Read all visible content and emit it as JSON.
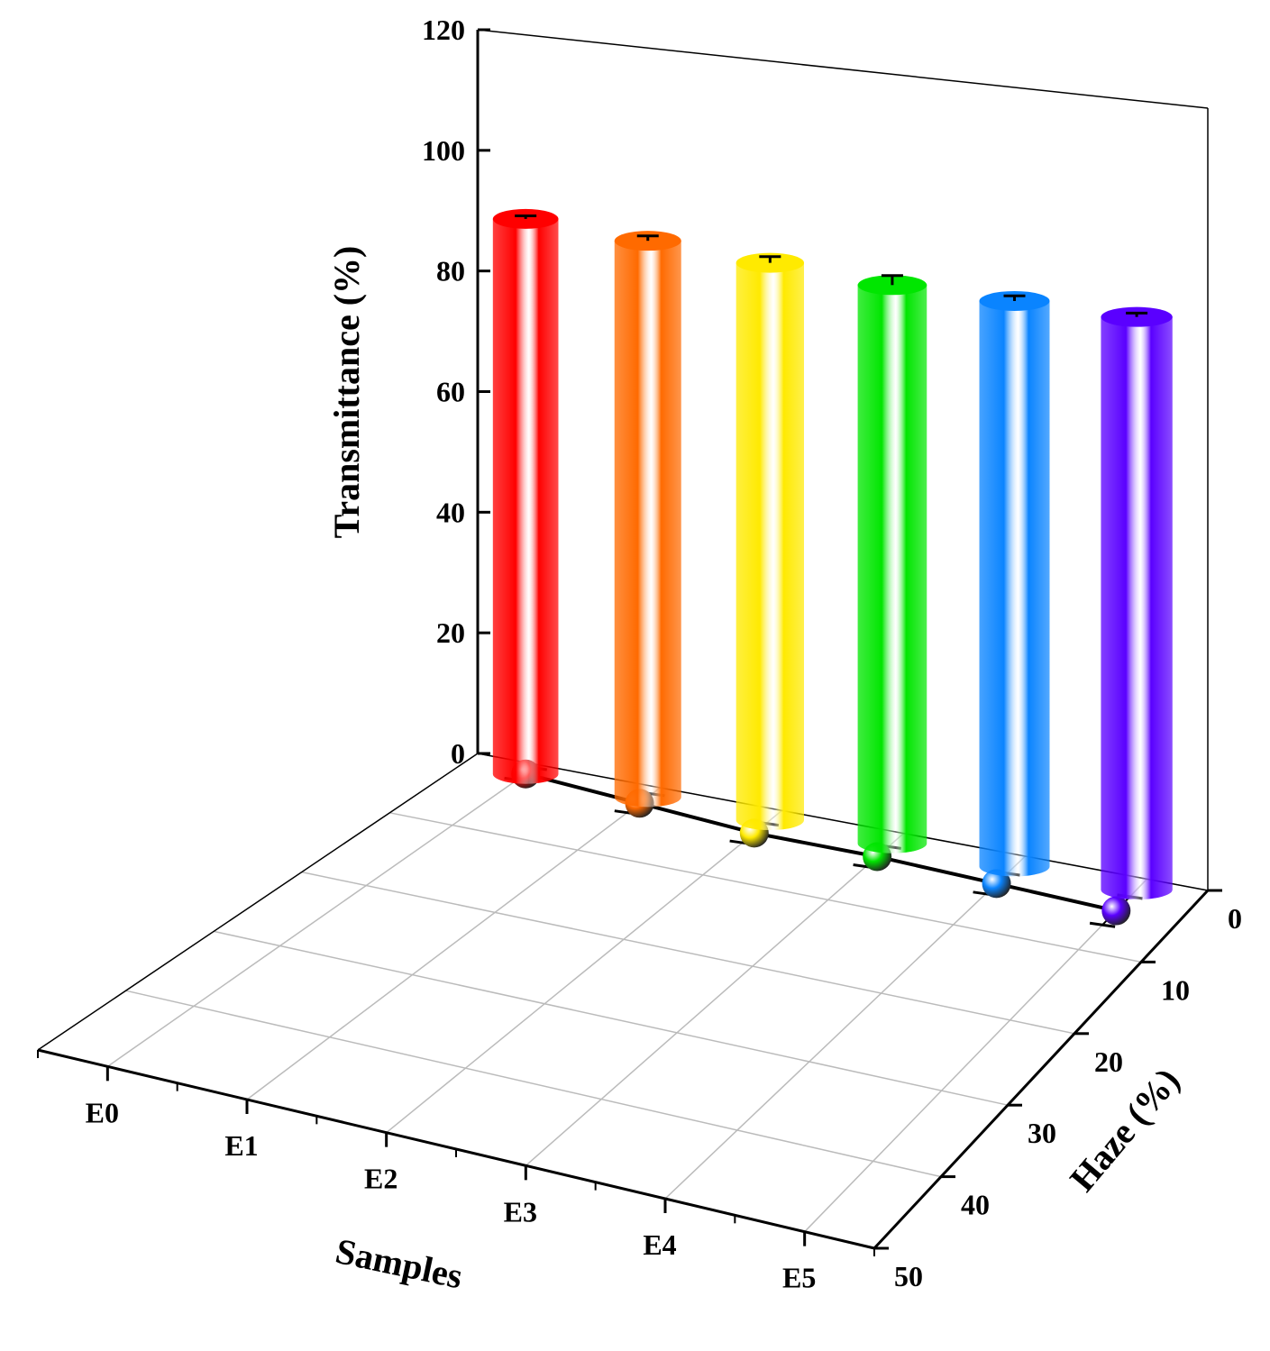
{
  "chart_data": {
    "type": "bar3d",
    "z_axis_label": "Transmittance (%)",
    "x_axis_label": "Samples",
    "y_axis_label": "Haze (%)",
    "categories": [
      "E0",
      "E1",
      "E2",
      "E3",
      "E4",
      "E5"
    ],
    "colors": [
      "#ff0000",
      "#ff6a00",
      "#ffea00",
      "#00e600",
      "#0a84ff",
      "#5a00ff"
    ],
    "transmittance": {
      "values": [
        91,
        90,
        89,
        88,
        88,
        88
      ],
      "errors": [
        0.5,
        0.8,
        1.0,
        1.5,
        0.8,
        0.6
      ]
    },
    "haze": {
      "values": [
        1.5,
        2.5,
        3.5,
        3.5,
        4.0,
        4.5
      ],
      "errors": [
        1.0,
        1.5,
        1.5,
        1.5,
        1.5,
        2.0
      ]
    },
    "zlim": [
      0,
      120
    ],
    "zticks": [
      0,
      20,
      40,
      60,
      80,
      100,
      120
    ],
    "ylim": [
      0,
      50
    ],
    "yticks": [
      0,
      10,
      20,
      30,
      40,
      50
    ]
  }
}
